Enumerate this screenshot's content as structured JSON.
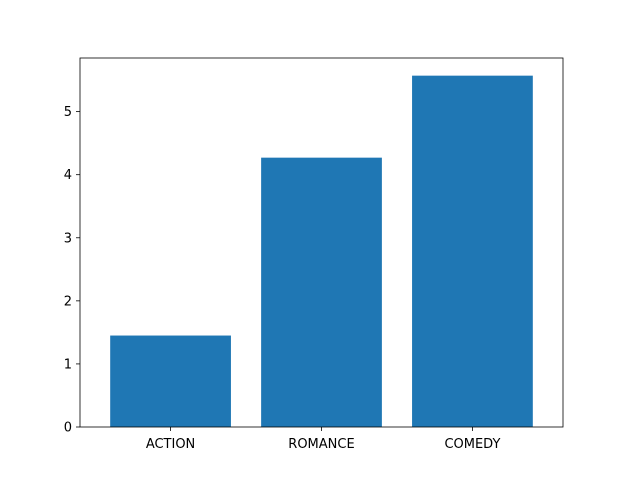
{
  "chart_data": {
    "type": "bar",
    "categories": [
      "ACTION",
      "ROMANCE",
      "COMEDY"
    ],
    "values": [
      1.45,
      4.27,
      5.57
    ],
    "title": "",
    "xlabel": "",
    "ylabel": "",
    "ylim": [
      0,
      5.85
    ],
    "yticks": [
      0,
      1,
      2,
      3,
      4,
      5
    ],
    "grid": false,
    "legend": "none",
    "colors": {
      "bar": "#1f77b4",
      "axis": "#000000",
      "background": "#ffffff"
    }
  }
}
